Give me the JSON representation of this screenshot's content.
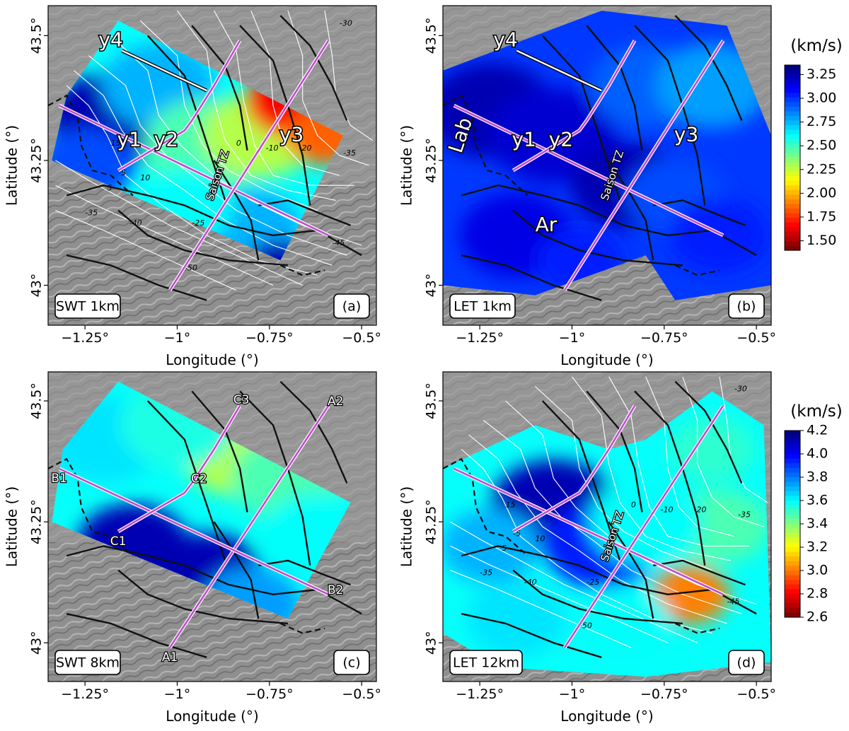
{
  "panels": [
    {
      "id": "a",
      "tag": "SWT 1km",
      "letter": "(a)",
      "mode": "swt1",
      "contours": true,
      "profiles": "y"
    },
    {
      "id": "b",
      "tag": "LET 1km",
      "letter": "(b)",
      "mode": "let1",
      "contours": false,
      "profiles": "y"
    },
    {
      "id": "c",
      "tag": "SWT 8km",
      "letter": "(c)",
      "mode": "swt8",
      "contours": false,
      "profiles": "abc"
    },
    {
      "id": "d",
      "tag": "LET 12km",
      "letter": "(d)",
      "mode": "let12",
      "contours": true,
      "profiles": "d"
    }
  ],
  "axes": {
    "xlabel": "Longitude (°)",
    "ylabel": "Latitude (°)",
    "xlim": [
      -1.35,
      -0.46
    ],
    "ylim": [
      42.92,
      43.56
    ],
    "xticks": [
      -1.25,
      -1.0,
      -0.75,
      -0.5
    ],
    "xtick_labels": [
      "−1.25°",
      "−1°",
      "−0.75°",
      "−0.5°"
    ],
    "yticks": [
      43.0,
      43.25,
      43.5
    ],
    "ytick_labels": [
      "43°",
      "43.25°",
      "43.5°"
    ]
  },
  "colorbars": [
    {
      "unit": "(km/s)",
      "ticks": [
        "3.25",
        "3.00",
        "2.75",
        "2.50",
        "2.25",
        "2.00",
        "1.75",
        "1.50"
      ],
      "range": [
        1.4,
        3.35
      ],
      "colormap": "jet_r"
    },
    {
      "unit": "(km/s)",
      "ticks": [
        "4.2",
        "4.0",
        "3.8",
        "3.6",
        "3.4",
        "3.2",
        "3.0",
        "2.8",
        "2.6"
      ],
      "range": [
        2.6,
        4.2
      ],
      "colormap": "jet_r"
    }
  ],
  "labels": {
    "y1": "y1",
    "y2": "y2",
    "y3": "y3",
    "y4": "y4",
    "lab": "Lab",
    "ar": "Ar",
    "saison": "Saison TZ",
    "A1": "A1",
    "A2": "A2",
    "B1": "B1",
    "B2": "B2",
    "C1": "C1",
    "C2": "C2",
    "C3": "C3"
  },
  "contour_labels": [
    "-30",
    "-35",
    "-20",
    "-10",
    "0",
    "-5",
    "5",
    "10",
    "15",
    "-25",
    "-40",
    "-35",
    "-50",
    "-45"
  ],
  "colors": {
    "profile": "#c04ccf",
    "fault": "#111111",
    "contour": "#ffffff",
    "terrain": "#8f8f8f"
  }
}
